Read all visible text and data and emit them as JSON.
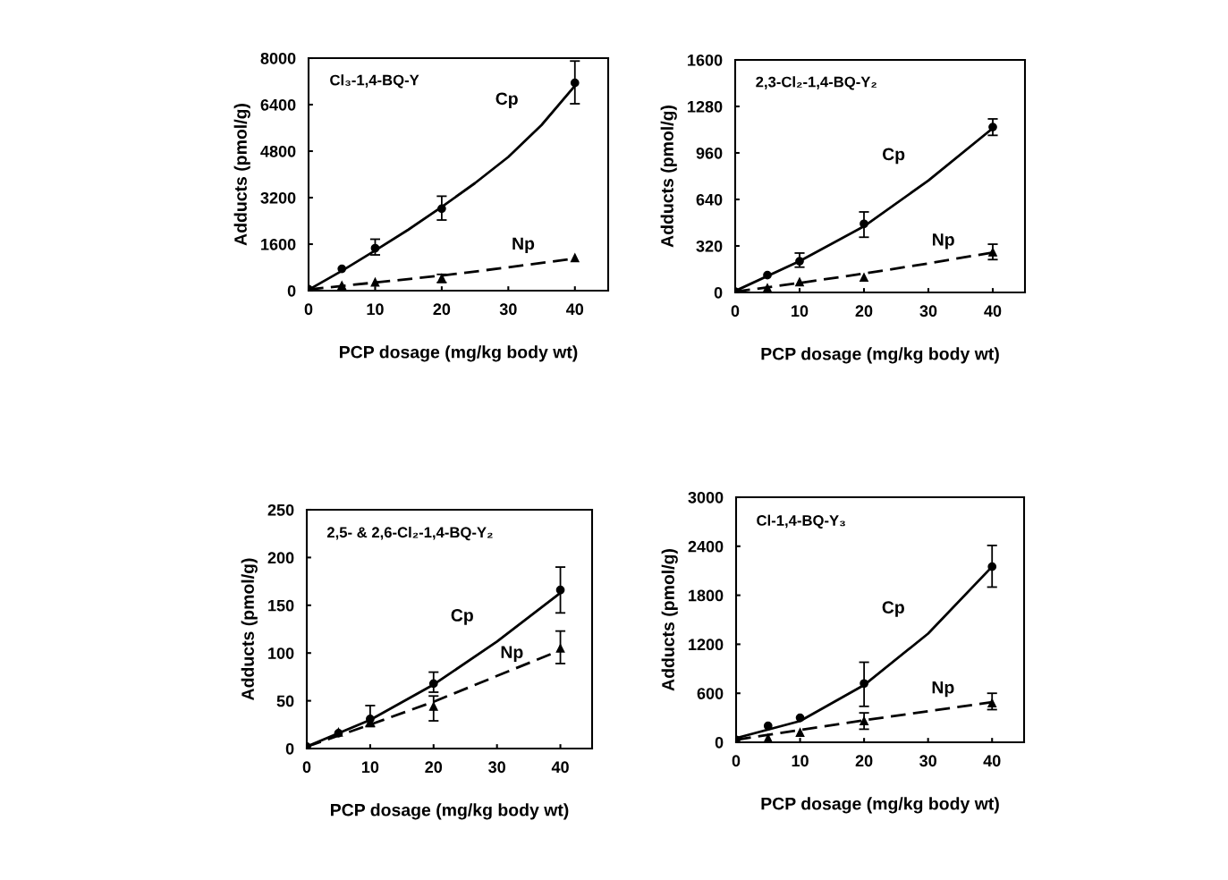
{
  "chart_data": [
    {
      "type": "scatter",
      "title": "Cl₃-1,4-BQ-Y",
      "xlabel": "PCP dosage (mg/kg body wt)",
      "ylabel": "Adducts (pmol/g)",
      "xlim": [
        0,
        45
      ],
      "xticks": [
        0,
        10,
        20,
        30,
        40
      ],
      "ylim": [
        0,
        8000
      ],
      "yticks": [
        0,
        1600,
        3200,
        4800,
        6400,
        8000
      ],
      "grid": false,
      "legend": false,
      "series": [
        {
          "type": "scatter",
          "marker": "circle",
          "color": "#000000",
          "x": [
            0,
            5,
            10,
            20,
            40
          ],
          "values": [
            50,
            750,
            1460,
            2820,
            7150
          ],
          "errors": [
            null,
            null,
            [
              1230,
              1770
            ],
            [
              2430,
              3250
            ],
            [
              6430,
              7900
            ]
          ]
        },
        {
          "type": "scatter",
          "marker": "triangle",
          "color": "#000000",
          "x": [
            5,
            10,
            20,
            40
          ],
          "values": [
            180,
            290,
            430,
            1130
          ],
          "errors": [
            null,
            null,
            [
              280,
              560
            ],
            null
          ]
        },
        {
          "type": "line",
          "name": "Cp",
          "line_style": "solid",
          "color": "#000000",
          "x": [
            0,
            5,
            10,
            15,
            20,
            25,
            30,
            35,
            40
          ],
          "values": [
            30,
            680,
            1380,
            2100,
            2880,
            3700,
            4600,
            5700,
            7050
          ]
        },
        {
          "type": "line",
          "name": "Np",
          "line_style": "dashed",
          "color": "#000000",
          "x": [
            0,
            10,
            20,
            30,
            40
          ],
          "values": [
            40,
            280,
            520,
            800,
            1110
          ]
        }
      ]
    },
    {
      "type": "scatter",
      "title": "2,3-Cl₂-1,4-BQ-Y₂",
      "xlabel": "PCP dosage (mg/kg body wt)",
      "ylabel": "Adducts (pmol/g)",
      "xlim": [
        0,
        45
      ],
      "xticks": [
        0,
        10,
        20,
        30,
        40
      ],
      "ylim": [
        0,
        1600
      ],
      "yticks": [
        0,
        320,
        640,
        960,
        1280,
        1600
      ],
      "grid": false,
      "legend": false,
      "series": [
        {
          "type": "scatter",
          "marker": "circle",
          "color": "#000000",
          "x": [
            0,
            5,
            10,
            20,
            40
          ],
          "values": [
            5,
            119,
            215,
            472,
            1138
          ],
          "errors": [
            null,
            null,
            [
              174,
              271
            ],
            [
              380,
              554
            ],
            [
              1081,
              1194
            ]
          ]
        },
        {
          "type": "scatter",
          "marker": "triangle",
          "color": "#000000",
          "x": [
            5,
            10,
            20,
            40
          ],
          "values": [
            31,
            72,
            103,
            277
          ],
          "errors": [
            null,
            null,
            null,
            [
              226,
              332
            ]
          ]
        },
        {
          "type": "line",
          "name": "Cp",
          "line_style": "solid",
          "color": "#000000",
          "x": [
            0,
            10,
            20,
            30,
            40
          ],
          "values": [
            10,
            215,
            455,
            770,
            1130
          ]
        },
        {
          "type": "line",
          "name": "Np",
          "line_style": "dashed",
          "color": "#000000",
          "x": [
            0,
            10,
            20,
            30,
            40
          ],
          "values": [
            5,
            65,
            130,
            200,
            275
          ]
        }
      ]
    },
    {
      "type": "scatter",
      "title": "2,5- & 2,6-Cl₂-1,4-BQ-Y₂",
      "xlabel": "PCP dosage (mg/kg body wt)",
      "ylabel": "Adducts (pmol/g)",
      "xlim": [
        0,
        45
      ],
      "xticks": [
        0,
        10,
        20,
        30,
        40
      ],
      "ylim": [
        0,
        250
      ],
      "yticks": [
        0,
        50,
        100,
        150,
        200,
        250
      ],
      "grid": false,
      "legend": false,
      "series": [
        {
          "type": "scatter",
          "marker": "circle",
          "color": "#000000",
          "x": [
            0,
            5,
            10,
            20,
            40
          ],
          "values": [
            2,
            16,
            31,
            68,
            166
          ],
          "errors": [
            null,
            null,
            [
              23,
              45
            ],
            [
              59,
              80
            ],
            [
              142,
              190
            ]
          ]
        },
        {
          "type": "scatter",
          "marker": "triangle",
          "color": "#000000",
          "x": [
            5,
            10,
            20,
            40
          ],
          "values": [
            17,
            28,
            44,
            105
          ],
          "errors": [
            null,
            null,
            [
              29,
              55
            ],
            [
              89,
              123
            ]
          ]
        },
        {
          "type": "line",
          "name": "Cp",
          "line_style": "solid",
          "color": "#000000",
          "x": [
            0,
            10,
            20,
            30,
            40
          ],
          "values": [
            2,
            30,
            67,
            112,
            163
          ]
        },
        {
          "type": "line",
          "name": "Np",
          "line_style": "dashed",
          "color": "#000000",
          "x": [
            0,
            10,
            20,
            30,
            40
          ],
          "values": [
            2,
            25,
            49,
            76,
            103
          ]
        }
      ]
    },
    {
      "type": "scatter",
      "title": "Cl-1,4-BQ-Y₃",
      "xlabel": "PCP dosage (mg/kg body wt)",
      "ylabel": "Adducts (pmol/g)",
      "xlim": [
        0,
        45
      ],
      "xticks": [
        0,
        10,
        20,
        30,
        40
      ],
      "ylim": [
        0,
        3000
      ],
      "yticks": [
        0,
        600,
        1200,
        1800,
        2400,
        3000
      ],
      "grid": false,
      "legend": false,
      "series": [
        {
          "type": "scatter",
          "marker": "circle",
          "color": "#000000",
          "x": [
            0,
            5,
            10,
            20,
            40
          ],
          "values": [
            30,
            200,
            300,
            720,
            2150
          ],
          "errors": [
            null,
            null,
            null,
            [
              440,
              980
            ],
            [
              1900,
              2410
            ]
          ]
        },
        {
          "type": "scatter",
          "marker": "triangle",
          "color": "#000000",
          "x": [
            5,
            10,
            20,
            40
          ],
          "values": [
            50,
            120,
            260,
            480
          ],
          "errors": [
            null,
            null,
            [
              160,
              360
            ],
            [
              400,
              600
            ]
          ]
        },
        {
          "type": "line",
          "name": "Cp",
          "line_style": "solid",
          "color": "#000000",
          "x": [
            0,
            10,
            20,
            30,
            40
          ],
          "values": [
            50,
            260,
            700,
            1330,
            2150
          ]
        },
        {
          "type": "line",
          "name": "Np",
          "line_style": "dashed",
          "color": "#000000",
          "x": [
            0,
            10,
            20,
            30,
            40
          ],
          "values": [
            30,
            150,
            270,
            380,
            490
          ]
        }
      ]
    }
  ]
}
